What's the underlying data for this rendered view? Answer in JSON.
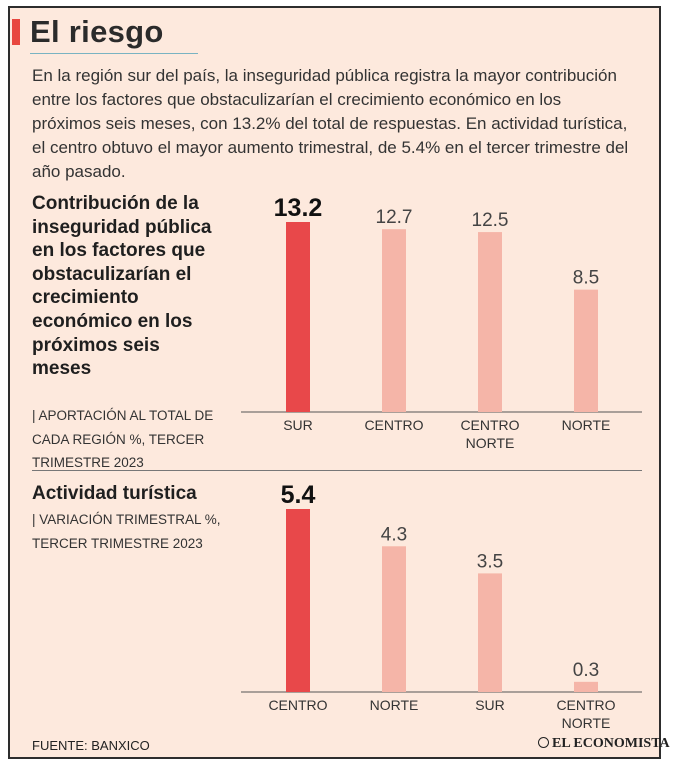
{
  "header": {
    "title": "El riesgo",
    "intro": "En la región sur del país, la inseguridad pública registra la mayor contribución entre los factores que obstaculizarían el crecimiento económico en los próximos seis meses, con 13.2% del total de respuestas. En actividad turística, el centro obtuvo el mayor aumento trimestral, de 5.4% en el tercer trimestre del año pasado."
  },
  "colors": {
    "accent": "#e8473f",
    "highlight": "#e8484a",
    "bar": "#f5b5a8",
    "baseline": "#555555",
    "background": "#fde9dd"
  },
  "chart1_text": {
    "heading": "Contribución de la inseguridad pública en los factores que obstaculizarían el crecimiento económico en los próximos seis meses",
    "subtitle": "| Aportación al total de cada región %, tercer trimestre 2023"
  },
  "chart2_text": {
    "heading": "Actividad turística",
    "subtitle": "| Variación trimestral %, tercer trimestre 2023"
  },
  "chart_data": [
    {
      "type": "bar",
      "title": "Contribución de la inseguridad pública en los factores que obstaculizarían el crecimiento económico en los próximos seis meses",
      "ylabel": "Aportación al total de cada región %",
      "categories": [
        "SUR",
        "CENTRO",
        "CENTRO NORTE",
        "NORTE"
      ],
      "values": [
        13.2,
        12.7,
        12.5,
        8.5
      ],
      "labels": [
        "13.2",
        "12.7",
        "12.5",
        "8.5"
      ],
      "highlight_index": 0,
      "ylim": [
        0,
        13.2
      ]
    },
    {
      "type": "bar",
      "title": "Actividad turística",
      "ylabel": "Variación trimestral %",
      "categories": [
        "CENTRO",
        "NORTE",
        "SUR",
        "CENTRO NORTE"
      ],
      "values": [
        5.4,
        4.3,
        3.5,
        0.3
      ],
      "labels": [
        "5.4",
        "4.3",
        "3.5",
        "0.3"
      ],
      "highlight_index": 0,
      "ylim": [
        0,
        5.4
      ]
    }
  ],
  "footer": {
    "source": "FUENTE: BANXICO",
    "brand": "EL ECONOMISTA"
  }
}
